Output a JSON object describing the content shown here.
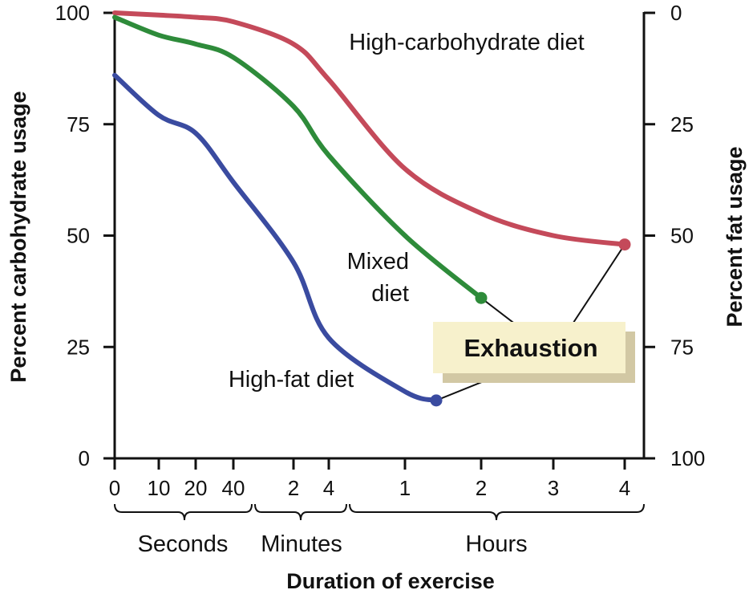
{
  "chart_data": {
    "type": "line",
    "xlabel": "Duration of exercise",
    "ylabel_left": "Percent carbohydrate usage",
    "ylabel_right": "Percent fat usage",
    "ylim_left": [
      0,
      100
    ],
    "ylim_right": [
      100,
      0
    ],
    "left_ticks": [
      "100",
      "75",
      "50",
      "25",
      "0"
    ],
    "right_ticks": [
      "0",
      "25",
      "50",
      "75",
      "100"
    ],
    "x_ticks": [
      "0",
      "10",
      "20",
      "40",
      "2",
      "4",
      "1",
      "2",
      "3",
      "4"
    ],
    "time_groups": [
      "Seconds",
      "Minutes",
      "Hours"
    ],
    "series": [
      {
        "name": "High-carbohydrate diet",
        "color": "#c44a5a",
        "x": [
          "0 s",
          "10 s",
          "20 s",
          "40 s",
          "2 min",
          "4 min",
          "1 h",
          "2 h",
          "3 h",
          "4 h"
        ],
        "values": [
          100,
          99.5,
          99,
          98,
          93,
          85,
          65,
          55,
          50,
          48
        ]
      },
      {
        "name": "Mixed diet",
        "color": "#2e8b3a",
        "x": [
          "0 s",
          "10 s",
          "20 s",
          "40 s",
          "2 min",
          "4 min",
          "1 h",
          "2 h"
        ],
        "values": [
          99,
          95,
          93,
          90,
          79,
          68,
          50,
          36
        ]
      },
      {
        "name": "High-fat diet",
        "color": "#3a4ba0",
        "x": [
          "0 s",
          "10 s",
          "20 s",
          "40 s",
          "2 min",
          "4 min",
          "1 h",
          "1.4 h"
        ],
        "values": [
          86,
          77,
          73,
          62,
          44,
          27,
          15,
          13
        ]
      }
    ],
    "annotations": {
      "exhaustion": "Exhaustion"
    },
    "colors": {
      "exhaustion_box": "#f7f1cc",
      "exhaustion_shadow": "#d2c8a4"
    }
  }
}
